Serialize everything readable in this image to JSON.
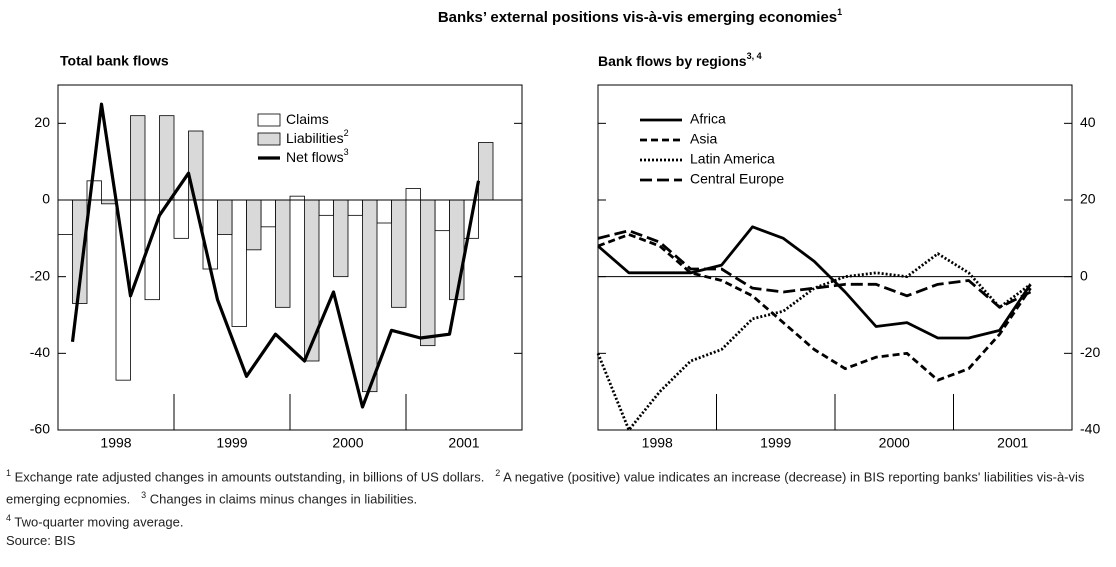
{
  "title": "Banks’ external positions vis-à-vis emerging economies",
  "title_sup": "1",
  "chart_data": [
    {
      "type": "bar_line",
      "title": "Total bank flows",
      "years": [
        "1998",
        "1999",
        "2000",
        "2001"
      ],
      "ylim": [
        -60,
        30
      ],
      "yticks": [
        -60,
        -40,
        -20,
        0,
        20
      ],
      "series": [
        {
          "name": "Claims",
          "color": "#ffffff",
          "values": [
            -9,
            5,
            -47,
            -26,
            -10,
            -18,
            -33,
            -7,
            1,
            -4,
            -4,
            -6,
            3,
            -8,
            -10
          ]
        },
        {
          "name": "Liabilities",
          "sup": "2",
          "color": "#d9d9d9",
          "values": [
            -27,
            -1,
            22,
            22,
            18,
            -9,
            -13,
            -28,
            -42,
            -20,
            -50,
            -28,
            -38,
            -26,
            15
          ]
        },
        {
          "name": "Net flows",
          "sup": "3",
          "color": "#000000",
          "values": [
            -37,
            25,
            -25,
            -4,
            7,
            -26,
            -46,
            -35,
            -42,
            -24,
            -54,
            -34,
            -36,
            -35,
            5
          ]
        }
      ]
    },
    {
      "type": "line",
      "title": "Bank flows by regions",
      "title_sup": "3, 4",
      "years": [
        "1998",
        "1999",
        "2000",
        "2001"
      ],
      "ylim": [
        -40,
        50
      ],
      "yticks": [
        -40,
        -20,
        0,
        20,
        40
      ],
      "series": [
        {
          "name": "Africa",
          "color": "#000000",
          "dash": "none",
          "values": [
            8,
            1,
            1,
            1,
            3,
            13,
            10,
            4,
            -4,
            -13,
            -12,
            -16,
            -16,
            -14,
            -2
          ]
        },
        {
          "name": "Asia",
          "color": "#000000",
          "dash": "7,4",
          "values": [
            8,
            11,
            8,
            1,
            -1,
            -5,
            -12,
            -19,
            -24,
            -21,
            -20,
            -27,
            -24,
            -15,
            -3
          ]
        },
        {
          "name": "Latin America",
          "color": "#000000",
          "dash": "2,2",
          "values": [
            -20,
            -40,
            -30,
            -22,
            -19,
            -11,
            -9,
            -3,
            0,
            1,
            0,
            6,
            1,
            -8,
            -2
          ]
        },
        {
          "name": "Central Europe",
          "color": "#000000",
          "dash": "12,5",
          "values": [
            10,
            12,
            9,
            2,
            2,
            -3,
            -4,
            -3,
            -2,
            -2,
            -5,
            -2,
            -1,
            -8,
            -4
          ]
        }
      ]
    }
  ],
  "notes": [
    {
      "sup": "1",
      "text": "Exchange rate adjusted changes in amounts outstanding, in billions of US dollars."
    },
    {
      "sup": "2",
      "text": "A negative (positive) value indicates an increase (decrease) in BIS reporting banks' liabilities vis-à-vis emerging ecpnomies."
    },
    {
      "sup": "3",
      "text": "Changes in claims minus changes in liabilities."
    },
    {
      "sup": "4",
      "text": "Two-quarter moving average."
    }
  ],
  "source": "Source: BIS"
}
